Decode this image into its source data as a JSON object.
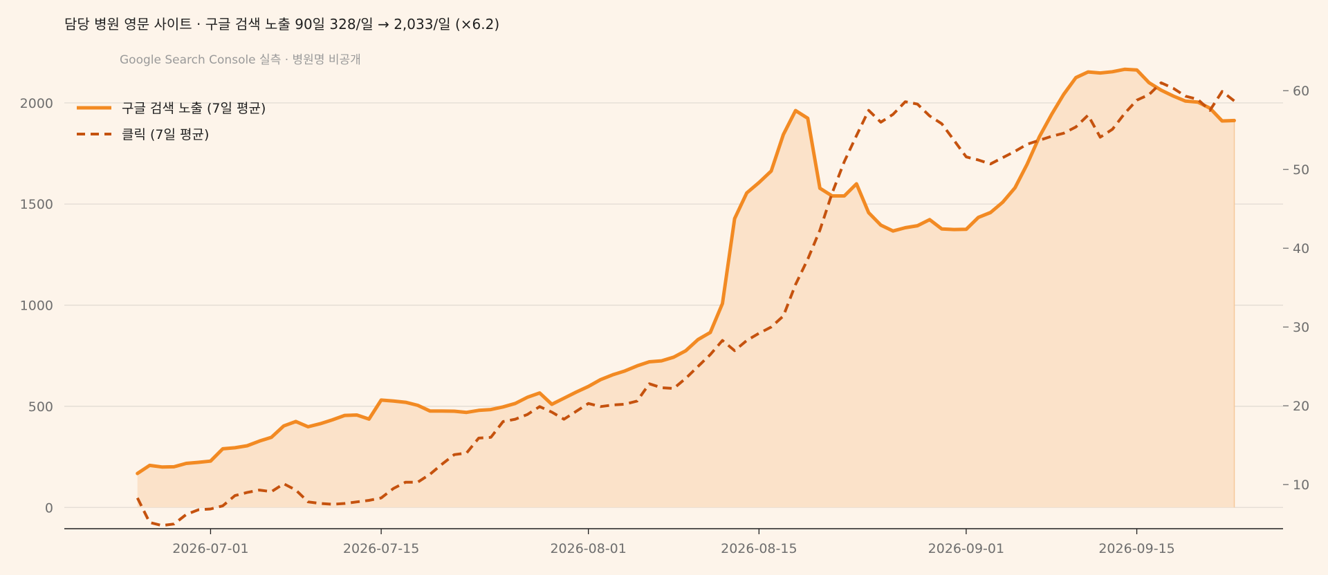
{
  "chart_data": {
    "type": "line",
    "title": "담당 병원 영문 사이트 · 구글 검색 노출 90일   328/일 → 2,033/일 (×6.2)",
    "subtitle": "Google Search Console 실측 · 병원명 비공개",
    "x_tick_labels": [
      "2026-07-01",
      "2026-07-15",
      "2026-08-01",
      "2026-08-15",
      "2026-09-01",
      "2026-09-15"
    ],
    "x_tick_dates": [
      "2026-07-01",
      "2026-07-15",
      "2026-08-01",
      "2026-08-15",
      "2026-09-01",
      "2026-09-15"
    ],
    "xlim": [
      "2026-06-19",
      "2026-09-27"
    ],
    "ylim_left": [
      -105,
      2150
    ],
    "ylim_right": [
      4.4,
      62.3
    ],
    "y_left_ticks": [
      0,
      500,
      1000,
      1500,
      2000
    ],
    "y_right_ticks": [
      10,
      20,
      30,
      40,
      50,
      60
    ],
    "grid": "horizontal",
    "legend_position": "top-left",
    "colors": {
      "impressions": "#f28a23",
      "clicks": "#c5520e",
      "fill": "#fbe2c9"
    },
    "series": [
      {
        "name": "구글 검색 노출 (7일 평균)",
        "axis": "left",
        "style": "solid",
        "start_date": "2026-06-25",
        "values": [
          168,
          208,
          200,
          201,
          218,
          223,
          229,
          290,
          295,
          305,
          328,
          347,
          403,
          425,
          399,
          414,
          433,
          455,
          457,
          437,
          531,
          526,
          520,
          505,
          477,
          477,
          476,
          470,
          480,
          484,
          497,
          514,
          545,
          566,
          510,
          540,
          570,
          598,
          632,
          656,
          675,
          700,
          720,
          725,
          743,
          775,
          830,
          865,
          1008,
          1428,
          1555,
          1606,
          1663,
          1844,
          1962,
          1924,
          1578,
          1540,
          1540,
          1600,
          1457,
          1396,
          1367,
          1383,
          1393,
          1423,
          1377,
          1374,
          1375,
          1434,
          1458,
          1509,
          1580,
          1697,
          1832,
          1942,
          2042,
          2125,
          2153,
          2148,
          2154,
          2166,
          2163,
          2100,
          2063,
          2034,
          2009,
          2004,
          1974,
          1911,
          1913
        ]
      },
      {
        "name": "클릭 (7일 평균)",
        "axis": "right",
        "style": "dashed",
        "start_date": "2026-06-25",
        "values": [
          8.3,
          5.2,
          4.8,
          5.0,
          6.2,
          6.8,
          6.9,
          7.3,
          8.6,
          9.0,
          9.3,
          9.1,
          10.1,
          9.3,
          7.8,
          7.6,
          7.5,
          7.6,
          7.8,
          8.0,
          8.3,
          9.5,
          10.3,
          10.3,
          11.3,
          12.6,
          13.8,
          14.0,
          15.9,
          16.0,
          18.0,
          18.3,
          18.9,
          19.9,
          19.2,
          18.3,
          19.3,
          20.3,
          19.9,
          20.1,
          20.2,
          20.6,
          22.8,
          22.3,
          22.2,
          23.5,
          25.0,
          26.5,
          28.3,
          27.0,
          28.3,
          29.2,
          30.0,
          31.4,
          35.4,
          38.6,
          42.3,
          47.0,
          51.0,
          54.3,
          57.5,
          56.0,
          57.0,
          58.6,
          58.3,
          56.8,
          55.8,
          53.7,
          51.6,
          51.2,
          50.7,
          51.5,
          52.3,
          53.2,
          53.7,
          54.2,
          54.6,
          55.4,
          56.9,
          54.1,
          55.1,
          57.1,
          58.8,
          59.5,
          61.0,
          60.3,
          59.3,
          58.9,
          57.5,
          59.9,
          58.7
        ]
      }
    ]
  }
}
